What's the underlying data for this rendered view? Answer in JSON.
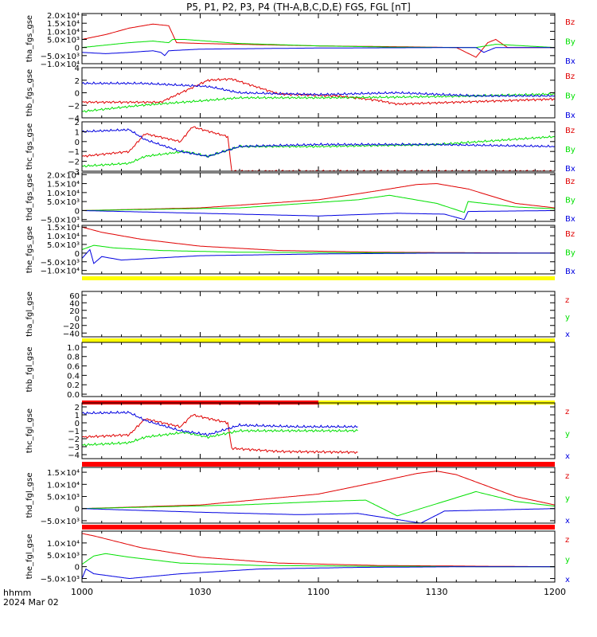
{
  "title": "P5, P1, P2, P3, P4 (TH-A,B,C,D,E) FGS, FGL [nT]",
  "footer": {
    "label1": "hhmm",
    "label2": "2024 Mar 02"
  },
  "colors": {
    "z": "#e00000",
    "y": "#00e000",
    "x": "#0000e0",
    "flag_yellow": "#ffff00",
    "flag_red": "#ff0000"
  },
  "x_axis": {
    "ticks": [
      "1000",
      "1030",
      "1100",
      "1130",
      "1200"
    ],
    "range_minutes": [
      600,
      720
    ]
  },
  "chart_data": [
    {
      "type": "line",
      "ylabel": "tha_fgs_gse",
      "ytick_labels": [
        "2.0×10⁴",
        "1.5×10⁴",
        "1.0×10⁴",
        "5.0×10³",
        "0",
        "−5.0×10³",
        "−1.0×10⁴"
      ],
      "ylim": [
        -10000,
        21000
      ],
      "legend": [
        "Bz",
        "By",
        "Bx"
      ],
      "series": [
        {
          "name": "Bz",
          "x": [
            600,
            606,
            612,
            618,
            622,
            624,
            630,
            640,
            660,
            680,
            695,
            700,
            703,
            705,
            708,
            720
          ],
          "values": [
            5000,
            8000,
            12000,
            14500,
            13500,
            3000,
            2500,
            2000,
            1000,
            500,
            0,
            -6000,
            3000,
            5000,
            0,
            0
          ]
        },
        {
          "name": "By",
          "x": [
            600,
            606,
            612,
            618,
            622,
            623,
            626,
            640,
            660,
            680,
            700,
            705,
            720
          ],
          "values": [
            0,
            1500,
            3000,
            4000,
            3000,
            5000,
            5000,
            2500,
            1000,
            200,
            0,
            2000,
            0
          ]
        },
        {
          "name": "Bx",
          "x": [
            600,
            606,
            612,
            618,
            620,
            621,
            622,
            630,
            660,
            700,
            702,
            705,
            720
          ],
          "values": [
            -3000,
            -3800,
            -3000,
            -2000,
            -3000,
            -5000,
            -2000,
            -1000,
            -300,
            0,
            -3000,
            0,
            0
          ]
        }
      ]
    },
    {
      "type": "line",
      "ylabel": "thb_fgs_gse",
      "ytick_labels": [
        "4",
        "2",
        "0",
        "−2",
        "−4"
      ],
      "ylim": [
        -4,
        4
      ],
      "legend": [
        "Bz",
        "By",
        "Bx"
      ],
      "series": [
        {
          "name": "Bz",
          "x": [
            600,
            620,
            632,
            638,
            650,
            665,
            675,
            680,
            720
          ],
          "values": [
            -1.5,
            -1.5,
            2.0,
            2.2,
            -0.2,
            -0.5,
            -1.2,
            -1.8,
            -1.0
          ]
        },
        {
          "name": "By",
          "x": [
            600,
            615,
            630,
            640,
            660,
            680,
            700,
            720
          ],
          "values": [
            -3.0,
            -2.0,
            -1.3,
            -0.8,
            -0.8,
            -0.7,
            -0.5,
            -0.2
          ]
        },
        {
          "name": "Bx",
          "x": [
            600,
            615,
            632,
            640,
            660,
            680,
            700,
            720
          ],
          "values": [
            1.5,
            1.5,
            1.0,
            0.0,
            -0.3,
            0.0,
            -0.5,
            -0.5
          ]
        }
      ]
    },
    {
      "type": "line",
      "ylabel": "thc_fgs_gse",
      "ytick_labels": [
        "2",
        "1",
        "0",
        "−1",
        "−2",
        "−3"
      ],
      "ylim": [
        -3,
        2
      ],
      "legend": [
        "Bz",
        "By",
        "Bx"
      ],
      "series": [
        {
          "name": "Bz",
          "x": [
            600,
            612,
            616,
            625,
            628,
            637,
            638,
            650,
            680,
            720
          ],
          "values": [
            -1.5,
            -1.0,
            0.8,
            0.0,
            1.5,
            0.5,
            -3.0,
            -3.0,
            -3.0,
            -3.0
          ]
        },
        {
          "name": "By",
          "x": [
            600,
            612,
            616,
            626,
            632,
            640,
            660,
            690,
            720
          ],
          "values": [
            -2.5,
            -2.2,
            -1.5,
            -1.0,
            -1.5,
            -0.5,
            -0.5,
            -0.3,
            0.5
          ]
        },
        {
          "name": "Bx",
          "x": [
            600,
            612,
            616,
            625,
            632,
            640,
            660,
            690,
            720
          ],
          "values": [
            1.0,
            1.2,
            0.2,
            -1.0,
            -1.5,
            -0.5,
            -0.3,
            -0.3,
            -0.5
          ]
        }
      ]
    },
    {
      "type": "line",
      "ylabel": "thd_fgs_gse",
      "ytick_labels": [
        "2.0×10⁴",
        "1.5×10⁴",
        "1.0×10⁴",
        "5.0×10³",
        "0",
        "−5.0×10³"
      ],
      "ylim": [
        -6000,
        21000
      ],
      "legend": [
        "Bz",
        "By",
        "Bx"
      ],
      "series": [
        {
          "name": "Bz",
          "x": [
            600,
            630,
            660,
            675,
            685,
            690,
            698,
            710,
            720
          ],
          "values": [
            0,
            1500,
            6000,
            11000,
            14500,
            15000,
            12000,
            4000,
            1500
          ]
        },
        {
          "name": "By",
          "x": [
            600,
            640,
            670,
            678,
            690,
            697,
            698,
            710,
            720
          ],
          "values": [
            0,
            1500,
            6000,
            8500,
            4000,
            -1000,
            5000,
            2000,
            1000
          ]
        },
        {
          "name": "Bx",
          "x": [
            600,
            630,
            660,
            680,
            692,
            697,
            698,
            720
          ],
          "values": [
            0,
            -1500,
            -3000,
            -1500,
            -2000,
            -5000,
            -500,
            0
          ]
        }
      ]
    },
    {
      "type": "line",
      "ylabel": "the_fgs_gse",
      "ytick_labels": [
        "1.5×10⁴",
        "1.0×10⁴",
        "5.0×10³",
        "0",
        "−5.0×10³",
        "−1.0×10⁴"
      ],
      "ylim": [
        -12000,
        16000
      ],
      "legend": [
        "Bz",
        "By",
        "Bx"
      ],
      "series": [
        {
          "name": "Bz",
          "x": [
            600,
            605,
            615,
            630,
            650,
            675,
            700,
            720
          ],
          "values": [
            15000,
            12000,
            8000,
            4000,
            1500,
            500,
            200,
            0
          ]
        },
        {
          "name": "By",
          "x": [
            600,
            603,
            608,
            620,
            640,
            670,
            700,
            720
          ],
          "values": [
            2000,
            4500,
            3000,
            1500,
            500,
            200,
            0,
            0
          ]
        },
        {
          "name": "Bx",
          "x": [
            600,
            602,
            603,
            605,
            610,
            630,
            660,
            690,
            720
          ],
          "values": [
            -3000,
            2000,
            -6000,
            -2000,
            -4000,
            -1500,
            -500,
            0,
            0
          ]
        }
      ]
    },
    {
      "type": "line",
      "ylabel": "tha_fgl_gse",
      "ytick_labels": [
        "60",
        "40",
        "20",
        "0",
        "−20",
        "−40"
      ],
      "ylim": [
        -50,
        70
      ],
      "legend": [
        "z",
        "y",
        "x"
      ],
      "series": []
    },
    {
      "type": "line",
      "ylabel": "thb_fgl_gse",
      "ytick_labels": [
        "1.0",
        "0.8",
        "0.6",
        "0.4",
        "0.2",
        "0.0"
      ],
      "ylim": [
        -0.05,
        1.1
      ],
      "legend": [],
      "series": []
    },
    {
      "type": "line",
      "ylabel": "thc_fgl_gse",
      "ytick_labels": [
        "2",
        "1",
        "0",
        "−1",
        "−2",
        "−3",
        "−4"
      ],
      "ylim": [
        -4.5,
        2.5
      ],
      "legend": [
        "z",
        "y",
        "x"
      ],
      "series": [
        {
          "name": "z",
          "x": [
            600,
            612,
            616,
            625,
            628,
            637,
            638,
            650,
            670
          ],
          "values": [
            -1.8,
            -1.5,
            0.5,
            -0.5,
            1.0,
            0.0,
            -3.2,
            -3.6,
            -3.7
          ]
        },
        {
          "name": "y",
          "x": [
            600,
            612,
            616,
            626,
            632,
            640,
            655,
            670
          ],
          "values": [
            -2.8,
            -2.5,
            -1.8,
            -1.2,
            -1.8,
            -1.0,
            -1.0,
            -1.0
          ]
        },
        {
          "name": "x",
          "x": [
            600,
            612,
            616,
            625,
            632,
            640,
            655,
            670
          ],
          "values": [
            1.2,
            1.3,
            0.3,
            -1.0,
            -1.5,
            -0.3,
            -0.5,
            -0.5
          ]
        }
      ]
    },
    {
      "type": "line",
      "ylabel": "thd_fgl_gse",
      "ytick_labels": [
        "1.5×10⁴",
        "1.0×10⁴",
        "5.0×10³",
        "0",
        "−5.0×10³"
      ],
      "ylim": [
        -6000,
        17000
      ],
      "legend": [
        "z",
        "y",
        "x"
      ],
      "series": [
        {
          "name": "z",
          "x": [
            600,
            630,
            660,
            675,
            685,
            690,
            695,
            710,
            720
          ],
          "values": [
            0,
            1500,
            6000,
            11000,
            14500,
            15500,
            14000,
            5000,
            1500
          ]
        },
        {
          "name": "y",
          "x": [
            600,
            640,
            662,
            672,
            680,
            690,
            700,
            710,
            720
          ],
          "values": [
            0,
            1500,
            3000,
            3500,
            -3000,
            2000,
            7000,
            3000,
            1000
          ]
        },
        {
          "name": "x",
          "x": [
            600,
            630,
            655,
            670,
            682,
            686,
            692,
            720
          ],
          "values": [
            0,
            -1500,
            -2500,
            -2000,
            -5000,
            -6000,
            -1000,
            0
          ]
        }
      ]
    },
    {
      "type": "line",
      "ylabel": "the_fgl_gse",
      "ytick_labels": [
        "1.0×10⁴",
        "5.0×10³",
        "0",
        "−5.0×10³"
      ],
      "ylim": [
        -6500,
        15000
      ],
      "legend": [
        "z",
        "y",
        "x"
      ],
      "series": [
        {
          "name": "z",
          "x": [
            600,
            603,
            615,
            630,
            650,
            675,
            700,
            720
          ],
          "values": [
            14000,
            13000,
            8000,
            4000,
            1500,
            500,
            200,
            0
          ]
        },
        {
          "name": "y",
          "x": [
            600,
            603,
            606,
            612,
            625,
            645,
            670,
            700,
            720
          ],
          "values": [
            1000,
            4500,
            5500,
            4000,
            1500,
            500,
            200,
            0,
            0
          ]
        },
        {
          "name": "x",
          "x": [
            600,
            601,
            603,
            612,
            625,
            645,
            670,
            700,
            720
          ],
          "values": [
            -5000,
            -1000,
            -3000,
            -5000,
            -3000,
            -1000,
            -300,
            0,
            0
          ]
        }
      ]
    }
  ]
}
